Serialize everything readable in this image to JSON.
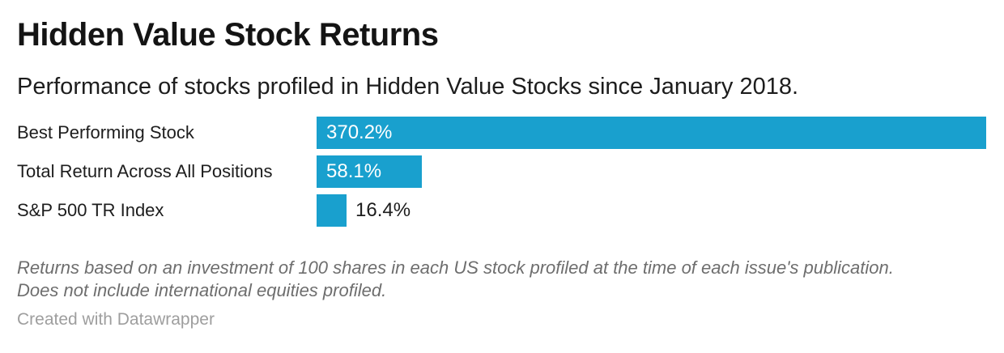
{
  "header": {
    "title": "Hidden Value Stock Returns",
    "subtitle": "Performance of stocks profiled in Hidden Value Stocks since January 2018."
  },
  "chart_data": {
    "type": "bar",
    "orientation": "horizontal",
    "title": "Hidden Value Stock Returns",
    "categories": [
      "Best Performing Stock",
      "Total Return Across All Positions",
      "S&P 500 TR Index"
    ],
    "values": [
      370.2,
      58.1,
      16.4
    ],
    "value_labels": [
      "370.2%",
      "58.1%",
      "16.4%"
    ],
    "value_label_placement": [
      "inside",
      "inside",
      "outside"
    ],
    "xlim": [
      0,
      370.2
    ],
    "grid": false,
    "legend": false,
    "bar_color": "#19a0ce"
  },
  "footer": {
    "footnote_lines": [
      "Returns based on an investment of 100 shares in each US stock profiled at the time of each issue's publication.",
      "Does not include international equities profiled."
    ],
    "attribution": "Created with Datawrapper"
  },
  "colors": {
    "background": "#ffffff",
    "bar": "#19a0ce",
    "title_text": "#141414",
    "body_text": "#1d1d1d",
    "inside_value_text": "#ffffff",
    "footnote_text": "#6e6e6e",
    "attribution_text": "#9e9e9e"
  }
}
